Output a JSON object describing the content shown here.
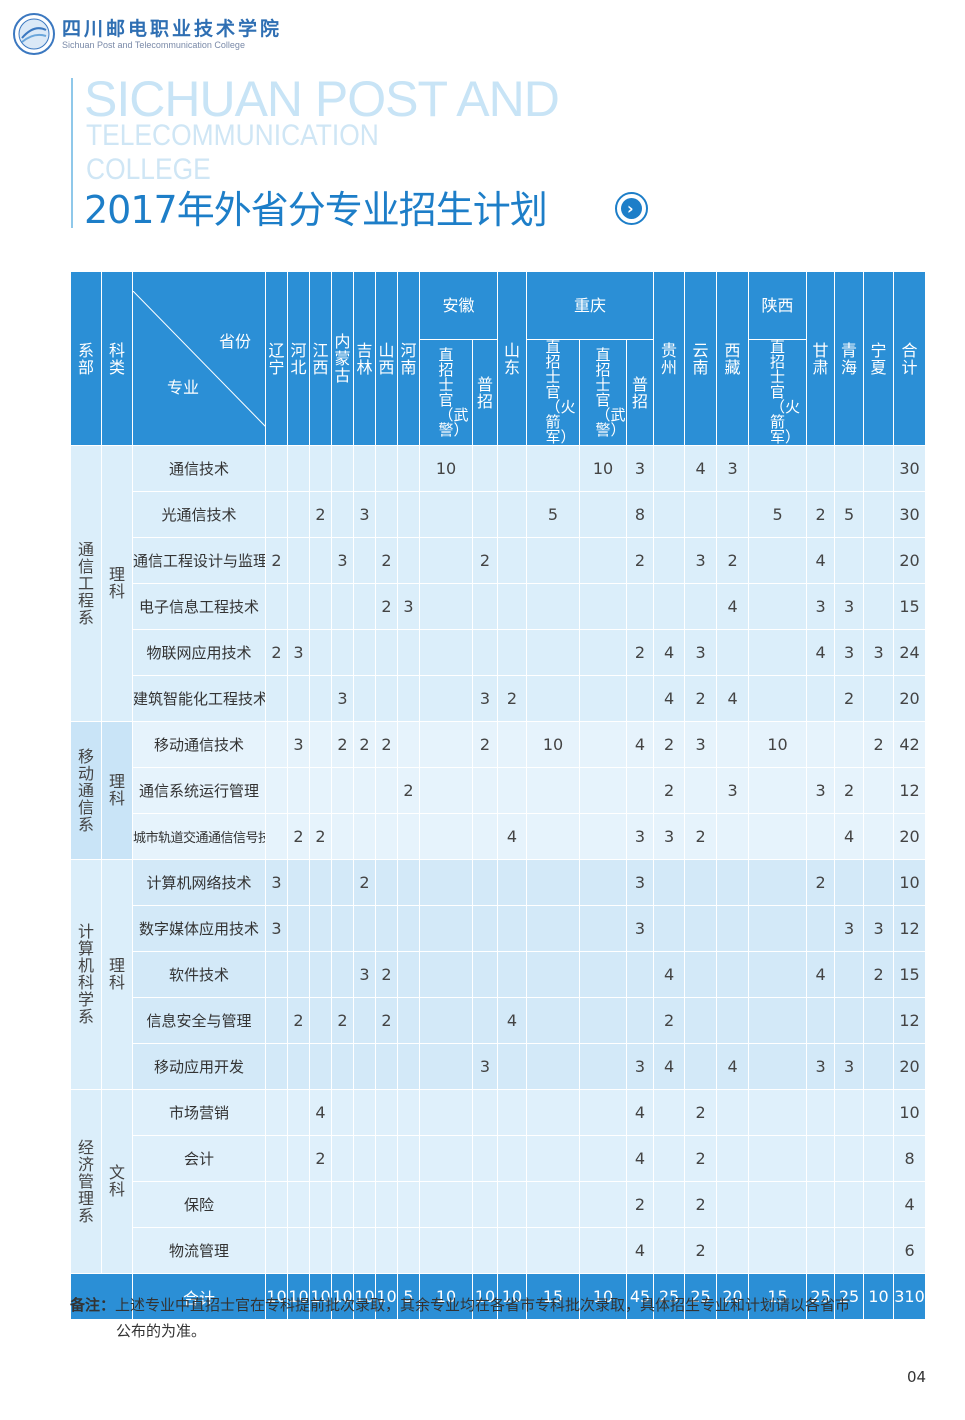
{
  "header": {
    "school_cn": "四川邮电职业技术学院",
    "school_en": "Sichuan Post and Telecommunication College",
    "title_en_line1": "SICHUAN POST AND",
    "title_en_line2": "TELECOMMUNICATION",
    "title_en_line3": "COLLEGE",
    "title_cn": "2017年外省分专业招生计划",
    "arrow_glyph": "›"
  },
  "table": {
    "col_dept": "系部",
    "col_category": "科类",
    "corner_top": "省份",
    "corner_bottom": "专业",
    "provinces": {
      "liaoning": "辽宁",
      "hebei": "河北",
      "jiangxi": "江西",
      "neimenggu": "内蒙古",
      "jilin": "吉林",
      "shanxi": "山西",
      "henan": "河南",
      "anhui": "安徽",
      "shandong": "山东",
      "chongqing": "重庆",
      "guizhou": "贵州",
      "yunnan": "云南",
      "xizang": "西藏",
      "shaanxi": "陕西",
      "gansu": "甘肃",
      "qinghai": "青海",
      "ningxia": "宁夏",
      "total": "合计"
    },
    "sub": {
      "anhui_wj": "直招士官（武警）",
      "anhui_pz": "普招",
      "cq_hjj": "直招士官（火箭军）",
      "cq_wj": "直招士官（武警）",
      "cq_pz": "普招",
      "sx_hjj": "直招士官（火箭军）"
    },
    "groups": [
      {
        "dept": "通信工程系",
        "category": "理科",
        "rows": [
          {
            "major": "通信技术",
            "v": [
              "",
              "",
              "",
              "",
              "",
              "",
              "",
              "10",
              "",
              "",
              "",
              "10",
              "3",
              "",
              "4",
              "3",
              "",
              "",
              "",
              "",
              "30"
            ]
          },
          {
            "major": "光通信技术",
            "v": [
              "",
              "",
              "2",
              "",
              "3",
              "",
              "",
              "",
              "",
              "",
              "5",
              "",
              "8",
              "",
              "",
              "",
              "5",
              "2",
              "5",
              "",
              "30"
            ]
          },
          {
            "major": "通信工程设计与监理",
            "v": [
              "2",
              "",
              "",
              "3",
              "",
              "2",
              "",
              "",
              "2",
              "",
              "",
              "",
              "2",
              "",
              "3",
              "2",
              "",
              "4",
              "",
              "",
              "20"
            ]
          },
          {
            "major": "电子信息工程技术",
            "v": [
              "",
              "",
              "",
              "",
              "",
              "2",
              "3",
              "",
              "",
              "",
              "",
              "",
              "",
              "",
              "",
              "4",
              "",
              "3",
              "3",
              "",
              "15"
            ]
          },
          {
            "major": "物联网应用技术",
            "v": [
              "2",
              "3",
              "",
              "",
              "",
              "",
              "",
              "",
              "",
              "",
              "",
              "",
              "2",
              "4",
              "3",
              "",
              "",
              "4",
              "3",
              "3",
              "24"
            ]
          },
          {
            "major": "建筑智能化工程技术",
            "v": [
              "",
              "",
              "",
              "3",
              "",
              "",
              "",
              "",
              "3",
              "2",
              "",
              "",
              "",
              "4",
              "2",
              "4",
              "",
              "",
              "2",
              "",
              "20"
            ]
          }
        ]
      },
      {
        "dept": "移动通信系",
        "category": "理科",
        "rows": [
          {
            "major": "移动通信技术",
            "v": [
              "",
              "3",
              "",
              "2",
              "2",
              "2",
              "",
              "",
              "2",
              "",
              "10",
              "",
              "4",
              "2",
              "3",
              "",
              "10",
              "",
              "",
              "2",
              "42"
            ]
          },
          {
            "major": "通信系统运行管理",
            "v": [
              "",
              "",
              "",
              "",
              "",
              "",
              "2",
              "",
              "",
              "",
              "",
              "",
              "",
              "2",
              "",
              "3",
              "",
              "3",
              "2",
              "",
              "12"
            ]
          },
          {
            "major": "城市轨道交通通信信号技术",
            "v": [
              "",
              "2",
              "2",
              "",
              "",
              "",
              "",
              "",
              "",
              "4",
              "",
              "",
              "3",
              "3",
              "2",
              "",
              "",
              "",
              "4",
              "",
              "20"
            ]
          }
        ]
      },
      {
        "dept": "计算机科学系",
        "category": "理科",
        "rows": [
          {
            "major": "计算机网络技术",
            "v": [
              "3",
              "",
              "",
              "",
              "2",
              "",
              "",
              "",
              "",
              "",
              "",
              "",
              "3",
              "",
              "",
              "",
              "",
              "2",
              "",
              "",
              "10"
            ]
          },
          {
            "major": "数字媒体应用技术",
            "v": [
              "3",
              "",
              "",
              "",
              "",
              "",
              "",
              "",
              "",
              "",
              "",
              "",
              "3",
              "",
              "",
              "",
              "",
              "",
              "3",
              "3",
              "12"
            ]
          },
          {
            "major": "软件技术",
            "v": [
              "",
              "",
              "",
              "",
              "3",
              "2",
              "",
              "",
              "",
              "",
              "",
              "",
              "",
              "4",
              "",
              "",
              "",
              "4",
              "",
              "2",
              "15"
            ]
          },
          {
            "major": "信息安全与管理",
            "v": [
              "",
              "2",
              "",
              "2",
              "",
              "2",
              "",
              "",
              "",
              "4",
              "",
              "",
              "",
              "2",
              "",
              "",
              "",
              "",
              "",
              "",
              "12"
            ]
          },
          {
            "major": "移动应用开发",
            "v": [
              "",
              "",
              "",
              "",
              "",
              "",
              "",
              "",
              "3",
              "",
              "",
              "",
              "3",
              "4",
              "",
              "4",
              "",
              "3",
              "3",
              "",
              "20"
            ]
          }
        ]
      },
      {
        "dept": "经济管理系",
        "category": "文科",
        "rows": [
          {
            "major": "市场营销",
            "v": [
              "",
              "",
              "4",
              "",
              "",
              "",
              "",
              "",
              "",
              "",
              "",
              "",
              "4",
              "",
              "2",
              "",
              "",
              "",
              "",
              "",
              "10"
            ]
          },
          {
            "major": "会计",
            "v": [
              "",
              "",
              "2",
              "",
              "",
              "",
              "",
              "",
              "",
              "",
              "",
              "",
              "4",
              "",
              "2",
              "",
              "",
              "",
              "",
              "",
              "8"
            ]
          },
          {
            "major": "保险",
            "v": [
              "",
              "",
              "",
              "",
              "",
              "",
              "",
              "",
              "",
              "",
              "",
              "",
              "2",
              "",
              "2",
              "",
              "",
              "",
              "",
              "",
              "4"
            ]
          },
          {
            "major": "物流管理",
            "v": [
              "",
              "",
              "",
              "",
              "",
              "",
              "",
              "",
              "",
              "",
              "",
              "",
              "4",
              "",
              "2",
              "",
              "",
              "",
              "",
              "",
              "6"
            ]
          }
        ]
      }
    ],
    "total": {
      "label": "合计",
      "v": [
        "10",
        "10",
        "10",
        "10",
        "10",
        "10",
        "5",
        "10",
        "10",
        "10",
        "15",
        "10",
        "45",
        "25",
        "25",
        "20",
        "15",
        "25",
        "25",
        "10",
        "310"
      ]
    }
  },
  "note": {
    "label": "备注：",
    "line1": "上述专业中直招士官在专科提前批次录取，其余专业均在各省市专科批次录取，具体招生专业和计划请以各省市",
    "line2": "公布的为准。"
  },
  "page_number": "04",
  "colors": {
    "header_blue": "#2b8fd6",
    "title_blue": "#1d7ec8",
    "cell_light": "#dff0fb"
  }
}
